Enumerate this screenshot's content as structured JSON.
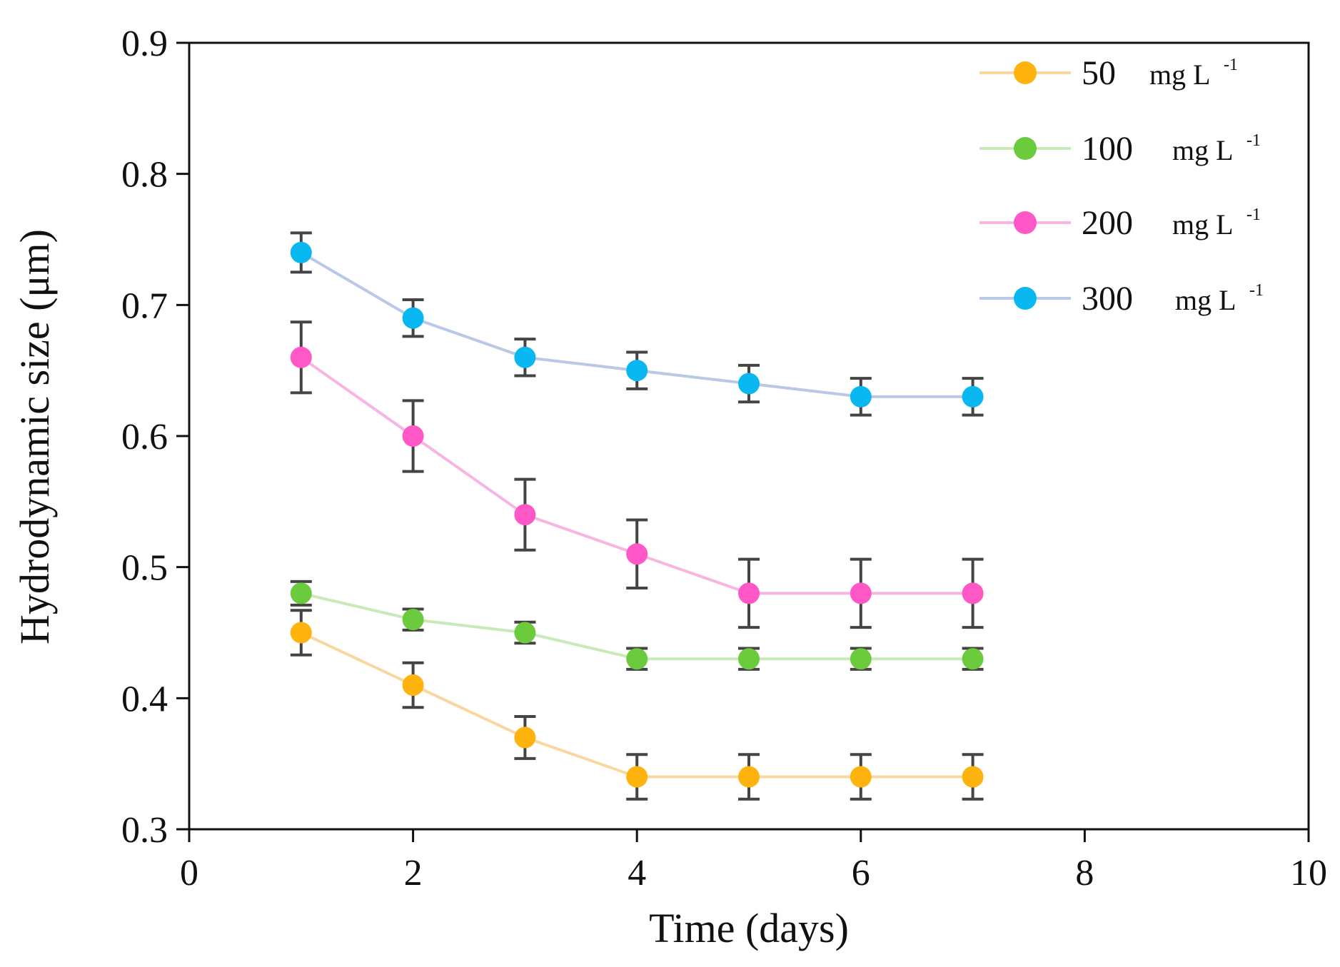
{
  "chart_data": {
    "type": "line",
    "title": "",
    "xlabel": "Time (days)",
    "ylabel": "Hydrodynamic size (μm)",
    "xlim": [
      0,
      10
    ],
    "ylim": [
      0.3,
      0.9
    ],
    "xticks": [
      0,
      2,
      4,
      6,
      8,
      10
    ],
    "xtick_labels": [
      "0",
      "2",
      "4",
      "6",
      "8",
      "10"
    ],
    "yticks": [
      0.3,
      0.4,
      0.5,
      0.6,
      0.7,
      0.8,
      0.9
    ],
    "ytick_labels": [
      "0.3",
      "0.4",
      "0.5",
      "0.6",
      "0.7",
      "0.8",
      "0.9"
    ],
    "grid": false,
    "legend_position": "top-right",
    "x": [
      1,
      2,
      3,
      4,
      5,
      6,
      7
    ],
    "series": [
      {
        "name": "50",
        "unit": "mg L",
        "unit_sup": "-1",
        "color": "#FFB30F",
        "line_color": "#F9D7A0",
        "values": [
          0.45,
          0.41,
          0.37,
          0.34,
          0.34,
          0.34,
          0.34
        ],
        "errors": [
          0.017,
          0.017,
          0.016,
          0.017,
          0.017,
          0.017,
          0.017
        ]
      },
      {
        "name": "100",
        "unit": "mg L",
        "unit_sup": "-1",
        "color": "#6CCB3C",
        "line_color": "#C9E9B8",
        "values": [
          0.48,
          0.46,
          0.45,
          0.43,
          0.43,
          0.43,
          0.43
        ],
        "errors": [
          0.009,
          0.008,
          0.008,
          0.008,
          0.008,
          0.008,
          0.008
        ]
      },
      {
        "name": "200",
        "unit": "mg L",
        "unit_sup": "-1",
        "color": "#FF58C6",
        "line_color": "#F7B5E2",
        "values": [
          0.66,
          0.6,
          0.54,
          0.51,
          0.48,
          0.48,
          0.48
        ],
        "errors": [
          0.027,
          0.027,
          0.027,
          0.026,
          0.026,
          0.026,
          0.026
        ]
      },
      {
        "name": "300",
        "unit": "mg L",
        "unit_sup": "-1",
        "color": "#09B8F0",
        "line_color": "#B8C8E6",
        "values": [
          0.74,
          0.69,
          0.66,
          0.65,
          0.64,
          0.63,
          0.63
        ],
        "errors": [
          0.015,
          0.014,
          0.014,
          0.014,
          0.014,
          0.014,
          0.014
        ]
      }
    ]
  }
}
